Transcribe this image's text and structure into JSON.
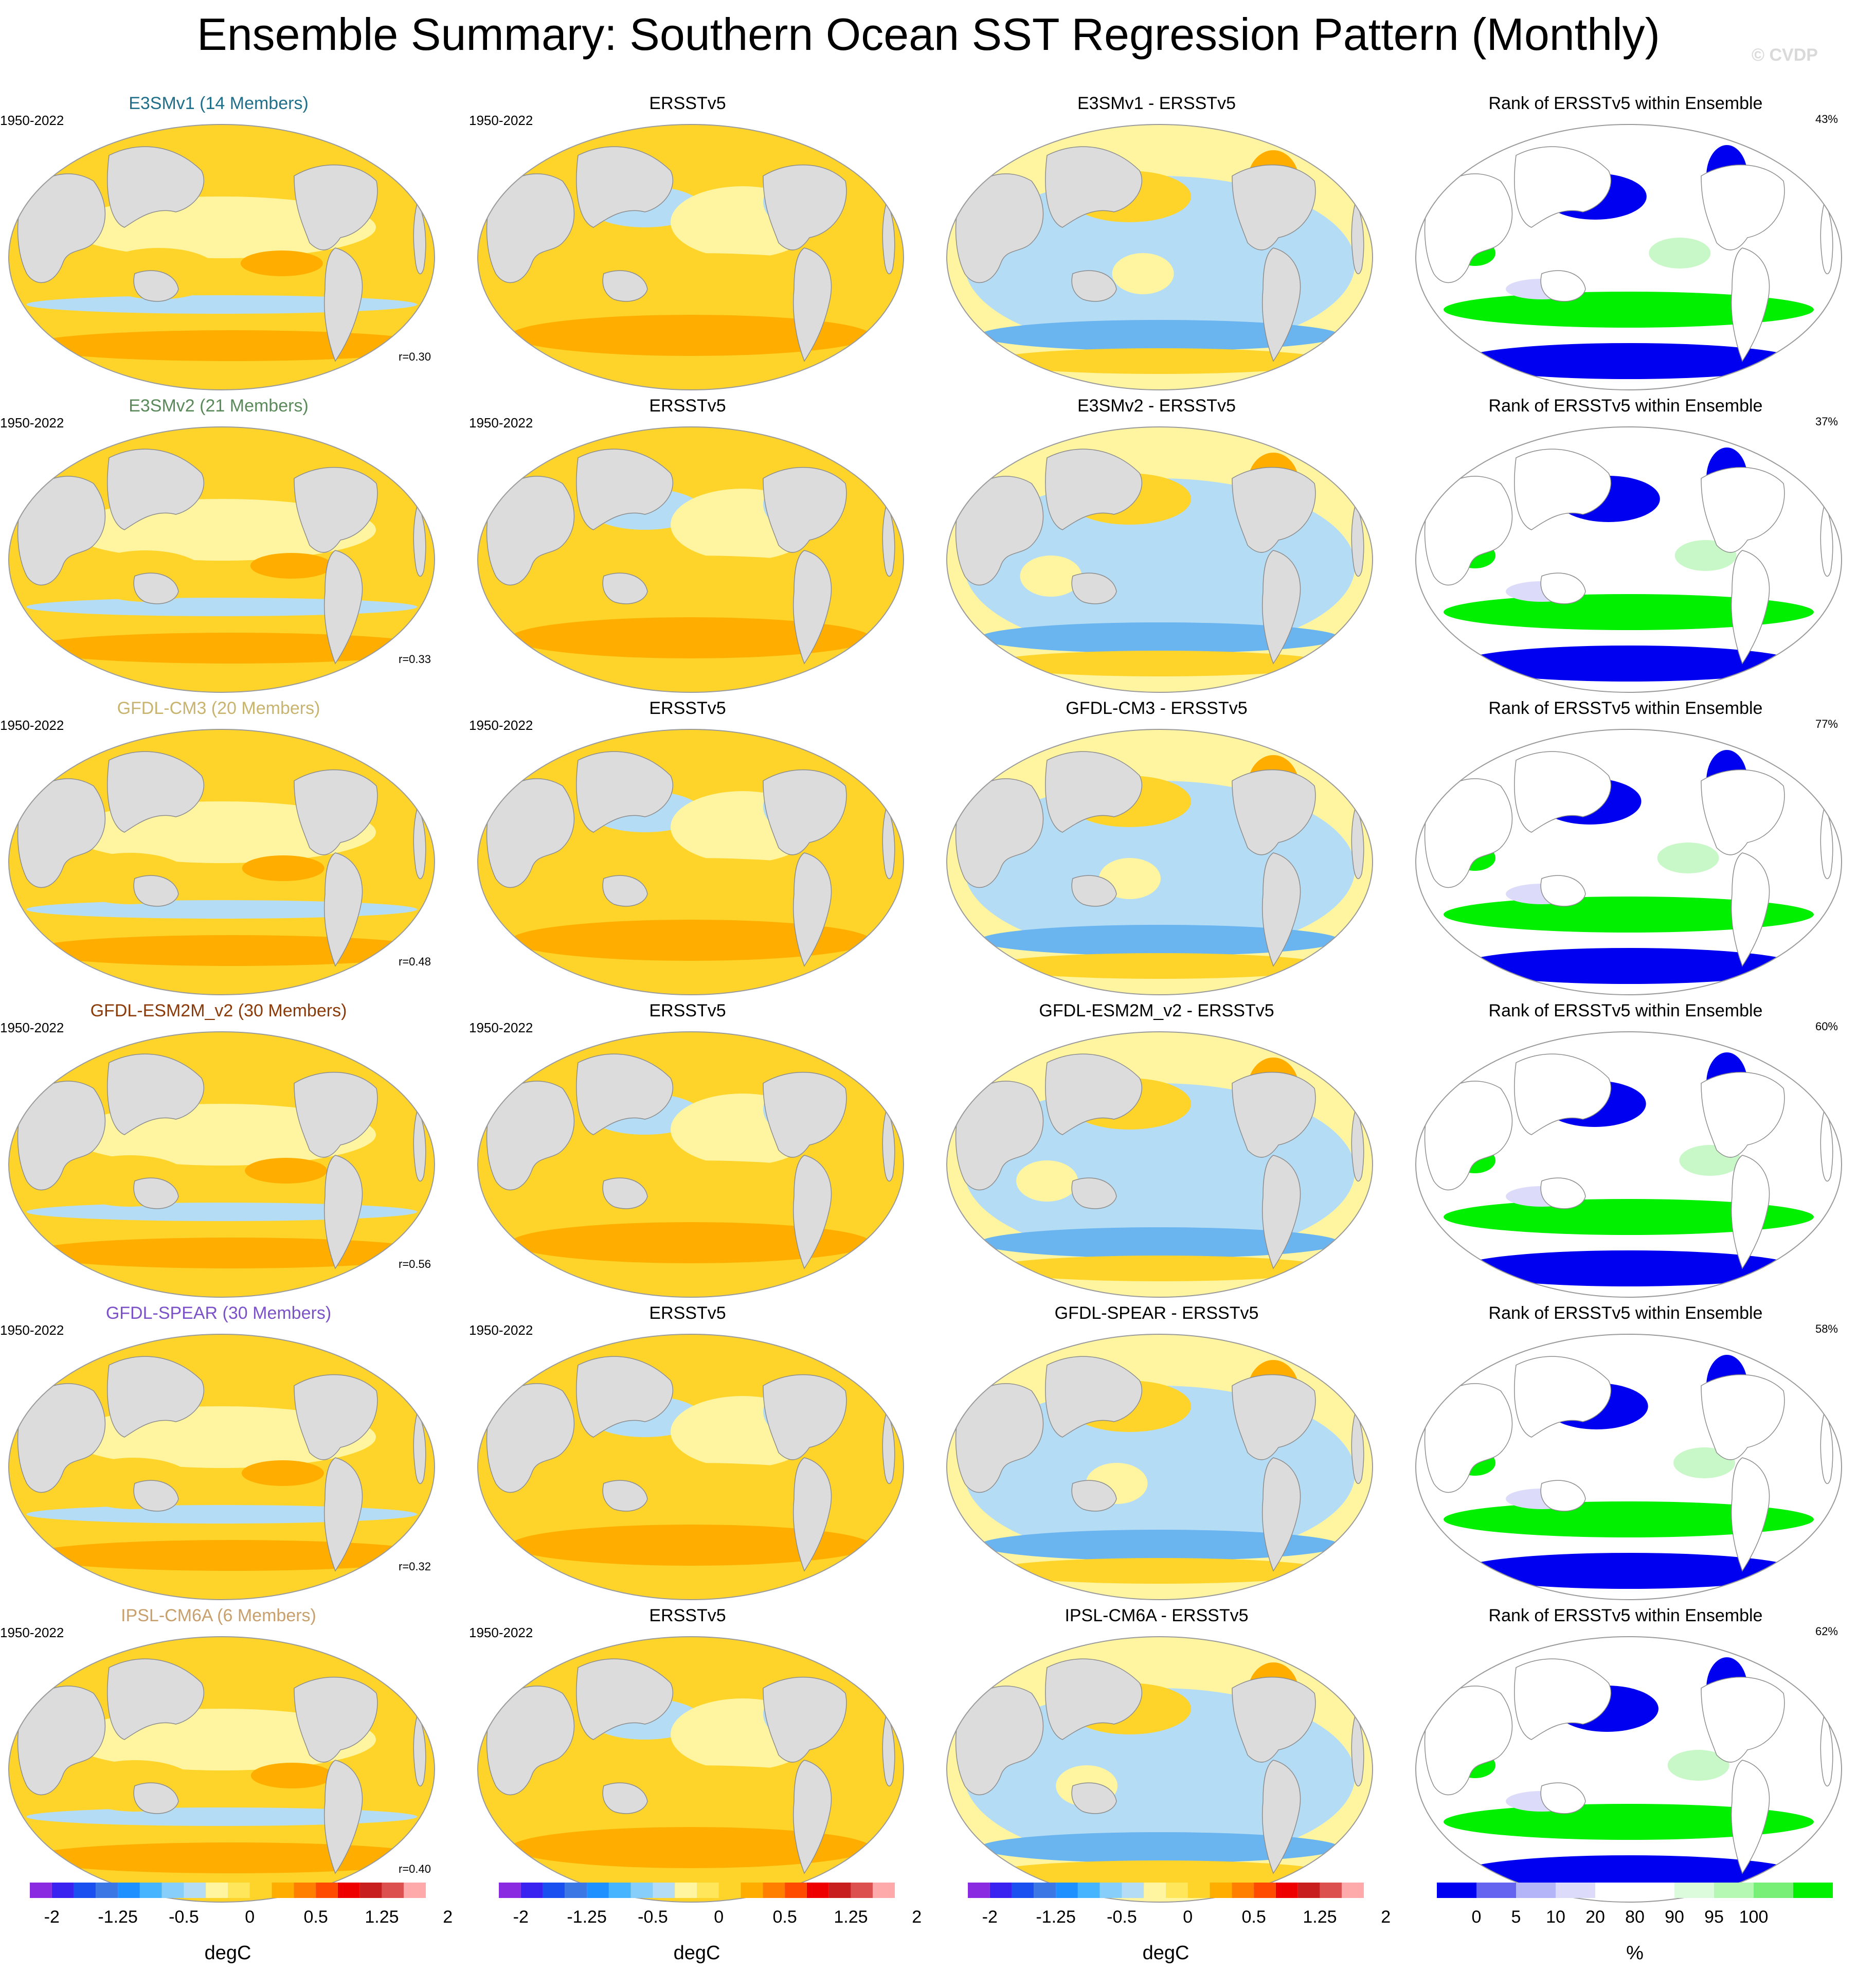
{
  "title": "Ensemble Summary: Southern Ocean SST Regression Pattern (Monthly)",
  "watermark": "© CVDP",
  "colors": {
    "land": "#dcdcdc",
    "warm_light": "#fff5a0",
    "warm": "#ffd42a",
    "warm_dark": "#ffae00",
    "cool": "#b4dcf5",
    "cool_dark": "#6ab4f0",
    "rank_low": "#0000f0",
    "rank_high": "#00f000",
    "rank_light_green": "#c8f8c8",
    "rank_light_blue": "#dcdcfa"
  },
  "rows": [
    {
      "model": "E3SMv1 (14 Members)",
      "model_color": "#1f6f8b",
      "period": "1950-2022",
      "corr": "r=0.30",
      "obs_title": "ERSSTv5",
      "obs_period": "1950-2022",
      "diff_title": "E3SMv1 - ERSSTv5",
      "rank_title": "Rank of ERSSTv5 within Ensemble",
      "rank_pct": "43%"
    },
    {
      "model": "E3SMv2 (21 Members)",
      "model_color": "#5a8a5a",
      "period": "1950-2022",
      "corr": "r=0.33",
      "obs_title": "ERSSTv5",
      "obs_period": "1950-2022",
      "diff_title": "E3SMv2 - ERSSTv5",
      "rank_title": "Rank of ERSSTv5 within Ensemble",
      "rank_pct": "37%"
    },
    {
      "model": "GFDL-CM3 (20 Members)",
      "model_color": "#c8b46e",
      "period": "1950-2022",
      "corr": "r=0.48",
      "obs_title": "ERSSTv5",
      "obs_period": "1950-2022",
      "diff_title": "GFDL-CM3 - ERSSTv5",
      "rank_title": "Rank of ERSSTv5 within Ensemble",
      "rank_pct": "77%"
    },
    {
      "model": "GFDL-ESM2M_v2 (30 Members)",
      "model_color": "#8b3a0a",
      "period": "1950-2022",
      "corr": "r=0.56",
      "obs_title": "ERSSTv5",
      "obs_period": "1950-2022",
      "diff_title": "GFDL-ESM2M_v2 - ERSSTv5",
      "rank_title": "Rank of ERSSTv5 within Ensemble",
      "rank_pct": "60%"
    },
    {
      "model": "GFDL-SPEAR (30 Members)",
      "model_color": "#7b52c8",
      "period": "1950-2022",
      "corr": "r=0.32",
      "obs_title": "ERSSTv5",
      "obs_period": "1950-2022",
      "diff_title": "GFDL-SPEAR - ERSSTv5",
      "rank_title": "Rank of ERSSTv5 within Ensemble",
      "rank_pct": "58%"
    },
    {
      "model": "IPSL-CM6A (6 Members)",
      "model_color": "#c8a06e",
      "period": "1950-2022",
      "corr": "r=0.40",
      "obs_title": "ERSSTv5",
      "obs_period": "1950-2022",
      "diff_title": "IPSL-CM6A - ERSSTv5",
      "rank_title": "Rank of ERSSTv5 within Ensemble",
      "rank_pct": "62%"
    }
  ],
  "colorbar_sst": {
    "colors": [
      "#8a2be2",
      "#3a22f0",
      "#1a50f0",
      "#3b78e6",
      "#1e90ff",
      "#46b4ff",
      "#87cefa",
      "#b4dcf5",
      "#fff5a0",
      "#ffe65a",
      "#ffd42a",
      "#ffae00",
      "#ff8000",
      "#ff4b00",
      "#ee0000",
      "#c81e1e",
      "#dc5050",
      "#ffaaaa"
    ],
    "ticks": [
      "-2",
      "-1.25",
      "-0.5",
      "0",
      "0.5",
      "1.25",
      "2"
    ],
    "unit": "degC"
  },
  "colorbar_rank": {
    "colors": [
      "#0000f0",
      "#6464f0",
      "#b4b4f8",
      "#dcdcfa",
      "#ffffff",
      "#ffffff",
      "#dcfadc",
      "#b4f8b4",
      "#78f078",
      "#00f000"
    ],
    "ticks": [
      "0",
      "5",
      "10",
      "20",
      "80",
      "90",
      "95",
      "100"
    ],
    "unit": "%"
  }
}
